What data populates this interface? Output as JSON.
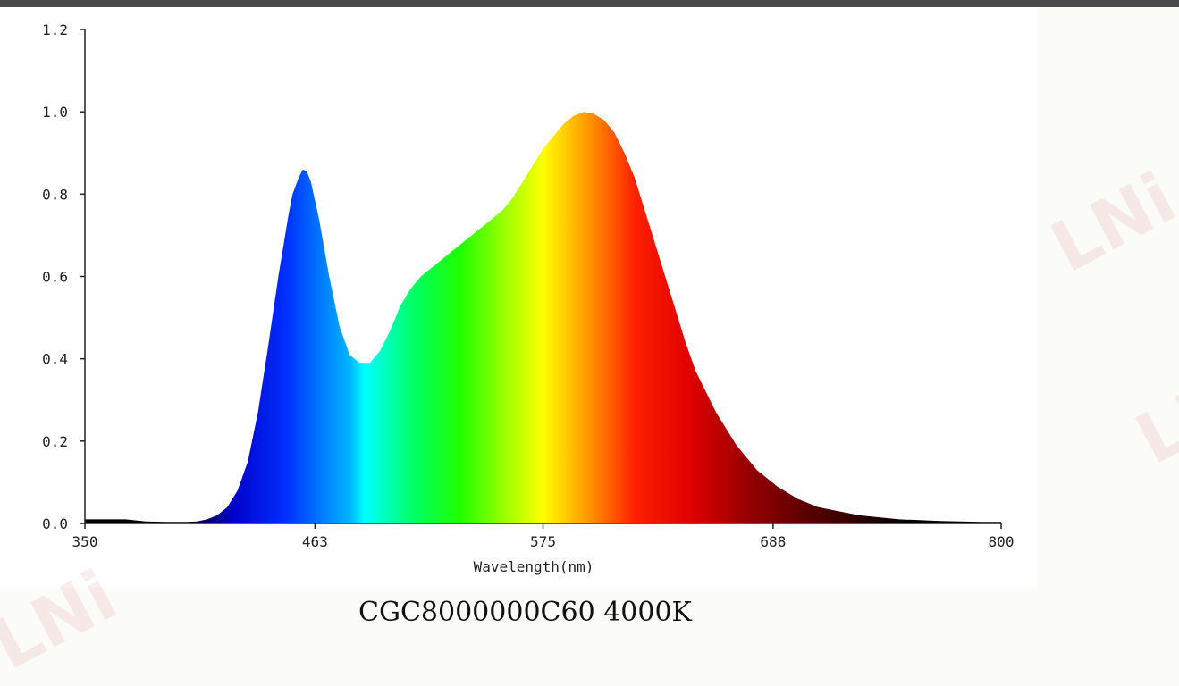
{
  "chart_data": {
    "type": "area",
    "title": "CGC8000000C60 4000K",
    "xlabel": "Wavelength(nm)",
    "ylabel": "",
    "xlim": [
      350,
      800
    ],
    "ylim": [
      0,
      1.2
    ],
    "xticks": [
      "350",
      "463",
      "575",
      "688",
      "800"
    ],
    "yticks": [
      "0.0",
      "0.2",
      "0.4",
      "0.6",
      "0.8",
      "1.0",
      "1.2"
    ],
    "grid": false,
    "legend": "none",
    "series": [
      {
        "x": [
          350,
          360,
          370,
          380,
          390,
          400,
          405,
          410,
          415,
          420,
          425,
          430,
          435,
          440,
          445,
          450,
          452,
          455,
          457,
          459,
          461,
          465,
          470,
          475,
          480,
          485,
          490,
          495,
          500,
          505,
          510,
          515,
          520,
          525,
          530,
          535,
          540,
          545,
          550,
          555,
          560,
          565,
          570,
          575,
          580,
          585,
          590,
          595,
          600,
          605,
          610,
          615,
          620,
          625,
          630,
          635,
          640,
          645,
          650,
          660,
          670,
          680,
          690,
          700,
          710,
          720,
          730,
          740,
          750,
          760,
          770,
          780,
          790,
          800
        ],
        "values": [
          0.01,
          0.01,
          0.01,
          0.005,
          0.004,
          0.004,
          0.005,
          0.01,
          0.02,
          0.04,
          0.08,
          0.15,
          0.27,
          0.43,
          0.6,
          0.75,
          0.8,
          0.84,
          0.86,
          0.855,
          0.83,
          0.74,
          0.6,
          0.48,
          0.41,
          0.39,
          0.39,
          0.42,
          0.47,
          0.53,
          0.57,
          0.6,
          0.62,
          0.64,
          0.66,
          0.68,
          0.7,
          0.72,
          0.74,
          0.76,
          0.79,
          0.83,
          0.87,
          0.91,
          0.94,
          0.97,
          0.99,
          1.0,
          0.995,
          0.98,
          0.95,
          0.9,
          0.84,
          0.76,
          0.68,
          0.6,
          0.52,
          0.44,
          0.37,
          0.27,
          0.19,
          0.13,
          0.09,
          0.06,
          0.04,
          0.03,
          0.02,
          0.015,
          0.01,
          0.008,
          0.006,
          0.005,
          0.004,
          0.004
        ]
      }
    ]
  },
  "watermark": "LNi"
}
